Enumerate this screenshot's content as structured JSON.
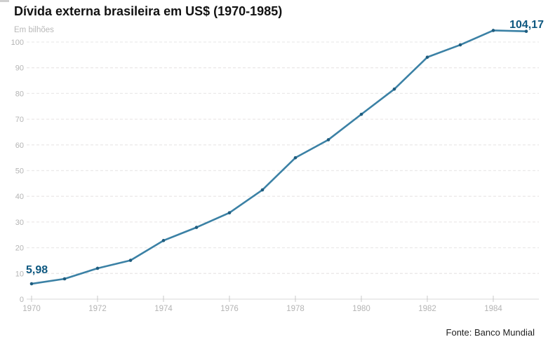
{
  "header": {
    "title": "Dívida externa brasileira em US$ (1970-1985)",
    "units_label": "Em bilhões"
  },
  "footer": {
    "source": "Fonte: Banco Mundial"
  },
  "chart_data": {
    "type": "line",
    "title": "Dívida externa brasileira em US$ (1970-1985)",
    "ylabel": "Em bilhões",
    "xlabel": "",
    "x": [
      1970,
      1971,
      1972,
      1973,
      1974,
      1975,
      1976,
      1977,
      1978,
      1979,
      1980,
      1981,
      1982,
      1983,
      1984,
      1985
    ],
    "series": [
      {
        "name": "Dívida externa brasileira (US$ bilhões)",
        "values": [
          5.98,
          7.9,
          12.0,
          15.1,
          22.8,
          27.9,
          33.6,
          42.5,
          55.0,
          62.0,
          71.9,
          81.7,
          94.1,
          98.9,
          104.5,
          104.17
        ]
      }
    ],
    "yticks": [
      0,
      10,
      20,
      30,
      40,
      50,
      60,
      70,
      80,
      90,
      100
    ],
    "xticks": [
      1970,
      1972,
      1974,
      1976,
      1978,
      1980,
      1982,
      1984
    ],
    "ylim": [
      0,
      105
    ],
    "grid": true,
    "legend": false,
    "annotations": {
      "first": "5,98",
      "last": "104,17"
    },
    "colors": {
      "line": "#3b81a5",
      "marker": "#1f5d7f",
      "annotation": "#0e5880",
      "grid": "#ebe9e9",
      "axis_line": "#d9d9d9",
      "tick": "#c9c9c9",
      "axis_text": "#b4b4b4"
    }
  }
}
